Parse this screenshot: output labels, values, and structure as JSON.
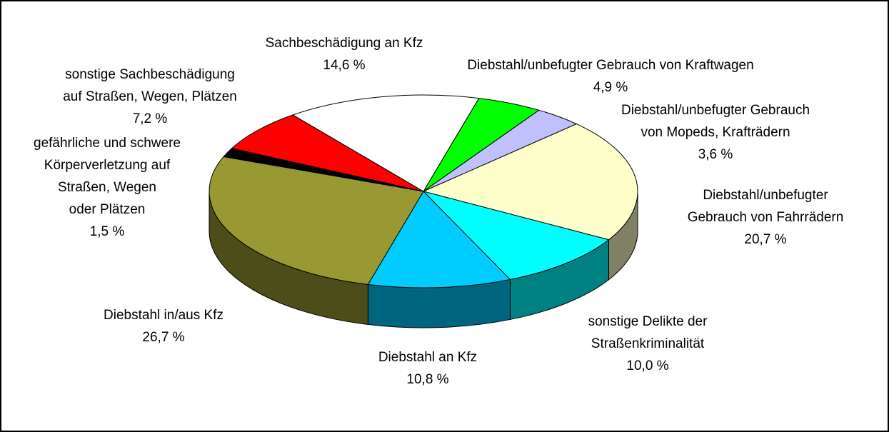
{
  "chart_data": {
    "type": "pie",
    "categories": [
      "Diebstahl/unbefugter Gebrauch von Kraftwagen",
      "Diebstahl/unbefugter Gebrauch\nvon Mopeds, Krafträdern",
      "Diebstahl/unbefugter\nGebrauch von Fahrrädern",
      "sonstige Delikte der\nStraßenkriminalität",
      "Diebstahl an Kfz",
      "Diebstahl in/aus Kfz",
      "gefährliche und schwere\nKörperverletzung auf\nStraßen, Wegen\noder Plätzen",
      "sonstige Sachbeschädigung\nauf Straßen, Wegen, Plätzen",
      "Sachbeschädigung an Kfz"
    ],
    "values": [
      4.9,
      3.6,
      20.7,
      10.0,
      10.8,
      26.7,
      1.5,
      7.2,
      14.6
    ],
    "value_labels": [
      "4,9 %",
      "3,6 %",
      "20,7 %",
      "10,0 %",
      "10,8 %",
      "26,7 %",
      "1,5 %",
      "7,2 %",
      "14,6 %"
    ],
    "colors": [
      "#00ff00",
      "#c0c0ff",
      "#ffffcc",
      "#00ffff",
      "#00ccff",
      "#999933",
      "#000000",
      "#ff0000",
      "#ffffff"
    ]
  }
}
